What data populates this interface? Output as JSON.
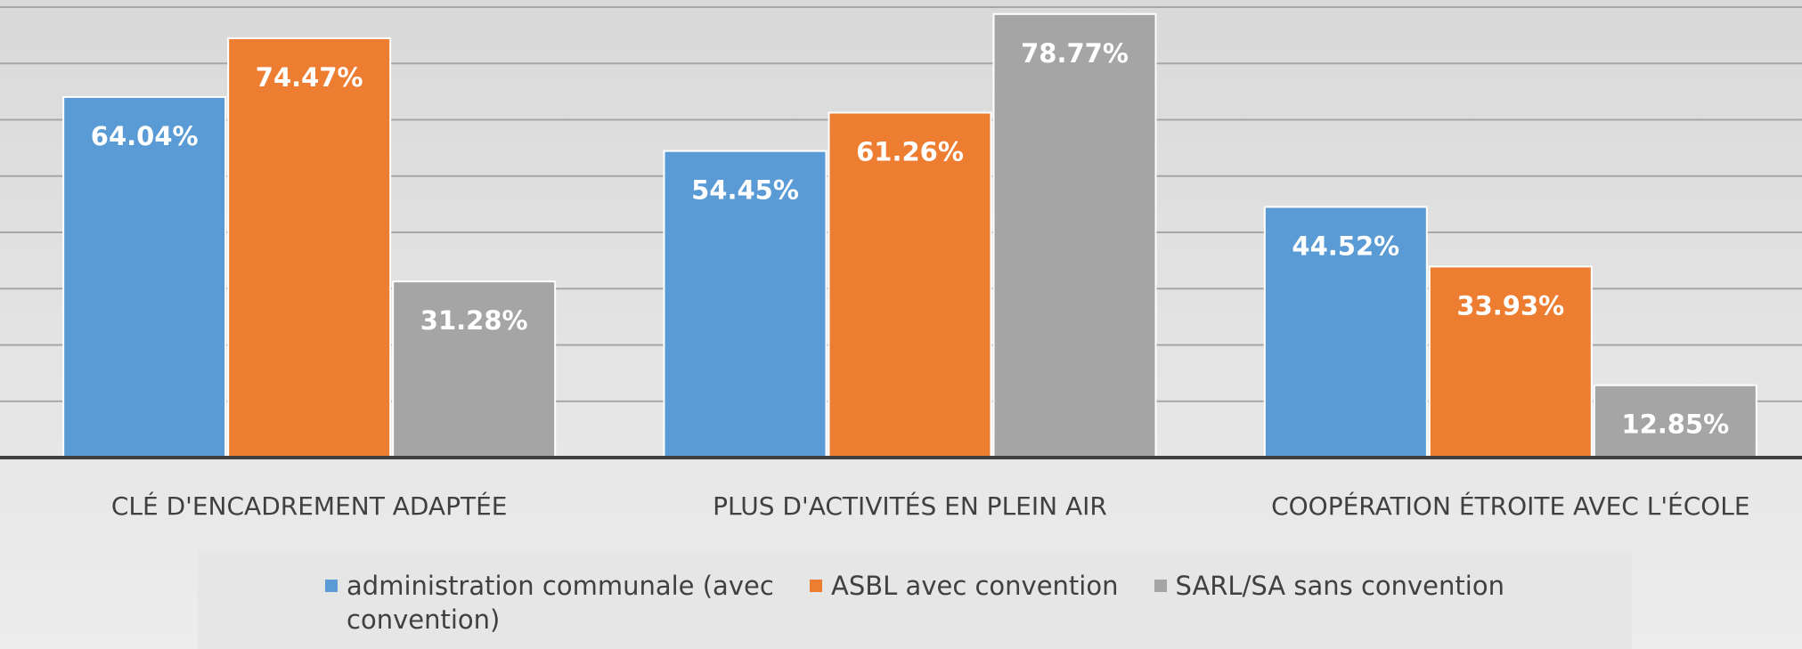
{
  "chart_data": {
    "type": "bar",
    "categories": [
      "CLÉ D'ENCADREMENT ADAPTÉE",
      "PLUS D'ACTIVITÉS EN PLEIN AIR",
      "COOPÉRATION ÉTROITE AVEC L'ÉCOLE"
    ],
    "series": [
      {
        "name": "administration communale (avec convention)",
        "color": "#5b9bd5",
        "values": [
          64.04,
          54.45,
          44.52
        ],
        "value_labels": [
          "64.04%",
          "54.45%",
          "44.52%"
        ]
      },
      {
        "name": "ASBL avec convention",
        "color": "#ed7d31",
        "values": [
          74.47,
          61.26,
          33.93
        ],
        "value_labels": [
          "74.47%",
          "61.26%",
          "33.93%"
        ]
      },
      {
        "name": "SARL/SA sans convention",
        "color": "#a5a5a5",
        "values": [
          31.28,
          78.77,
          12.85
        ],
        "value_labels": [
          "31.28%",
          "78.77%",
          "12.85%"
        ]
      }
    ],
    "ylim": [
      0,
      80
    ],
    "yticks": [
      0,
      10,
      20,
      30,
      40,
      50,
      60,
      70,
      80
    ],
    "grid": true,
    "legend": "bottom"
  }
}
